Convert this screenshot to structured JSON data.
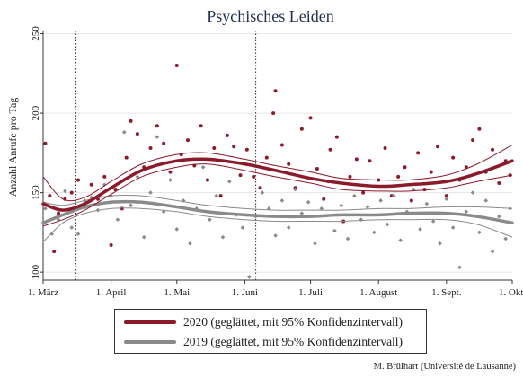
{
  "chart_data": {
    "type": "scatter",
    "title": "Psychisches Leiden",
    "ylabel": "Anzahl Anrufe pro Tag",
    "xlabel": "",
    "ylim": [
      95,
      252
    ],
    "xlim": [
      "2020-03-01",
      "2020-10-01"
    ],
    "yticks": [
      100,
      150,
      200,
      250
    ],
    "xticks": [
      {
        "date": "2020-03-01",
        "label": "1. März"
      },
      {
        "date": "2020-04-01",
        "label": "1. April"
      },
      {
        "date": "2020-05-01",
        "label": "1. Mai"
      },
      {
        "date": "2020-06-01",
        "label": "1. Juni"
      },
      {
        "date": "2020-07-01",
        "label": "1. Juli"
      },
      {
        "date": "2020-08-01",
        "label": "1. August"
      },
      {
        "date": "2020-09-01",
        "label": "1. Sept."
      },
      {
        "date": "2020-10-01",
        "label": "1. Okt."
      }
    ],
    "vlines": [
      "2020-03-16",
      "2020-06-06"
    ],
    "series": [
      {
        "name": "2020 (geglättet, mit 95% Konfidenzintervall)",
        "color": "#8b1a2b",
        "marker": "circle",
        "smooth": [
          {
            "x": "2020-03-01",
            "y": 143,
            "lo": 129,
            "hi": 160
          },
          {
            "x": "2020-03-10",
            "y": 139,
            "lo": 133,
            "hi": 146
          },
          {
            "x": "2020-03-20",
            "y": 143,
            "lo": 139,
            "hi": 147
          },
          {
            "x": "2020-04-01",
            "y": 153,
            "lo": 149,
            "hi": 157
          },
          {
            "x": "2020-04-15",
            "y": 164,
            "lo": 160,
            "hi": 168
          },
          {
            "x": "2020-05-01",
            "y": 170,
            "lo": 166,
            "hi": 174
          },
          {
            "x": "2020-05-15",
            "y": 171,
            "lo": 168,
            "hi": 175
          },
          {
            "x": "2020-06-01",
            "y": 168,
            "lo": 164,
            "hi": 171
          },
          {
            "x": "2020-06-15",
            "y": 164,
            "lo": 160,
            "hi": 167
          },
          {
            "x": "2020-07-01",
            "y": 159,
            "lo": 156,
            "hi": 163
          },
          {
            "x": "2020-07-15",
            "y": 156,
            "lo": 152,
            "hi": 159
          },
          {
            "x": "2020-08-01",
            "y": 154,
            "lo": 151,
            "hi": 158
          },
          {
            "x": "2020-08-15",
            "y": 155,
            "lo": 151,
            "hi": 158
          },
          {
            "x": "2020-09-01",
            "y": 157,
            "lo": 153,
            "hi": 161
          },
          {
            "x": "2020-09-15",
            "y": 162,
            "lo": 157,
            "hi": 168
          },
          {
            "x": "2020-10-01",
            "y": 170,
            "lo": 161,
            "hi": 180
          }
        ],
        "points": [
          {
            "x": "2020-03-02",
            "y": 181
          },
          {
            "x": "2020-03-04",
            "y": 148
          },
          {
            "x": "2020-03-06",
            "y": 113
          },
          {
            "x": "2020-03-08",
            "y": 137
          },
          {
            "x": "2020-03-11",
            "y": 146
          },
          {
            "x": "2020-03-14",
            "y": 150
          },
          {
            "x": "2020-03-17",
            "y": 158
          },
          {
            "x": "2020-03-20",
            "y": 141
          },
          {
            "x": "2020-03-23",
            "y": 155
          },
          {
            "x": "2020-03-26",
            "y": 146
          },
          {
            "x": "2020-03-29",
            "y": 160
          },
          {
            "x": "2020-04-01",
            "y": 117
          },
          {
            "x": "2020-04-03",
            "y": 152
          },
          {
            "x": "2020-04-06",
            "y": 140
          },
          {
            "x": "2020-04-08",
            "y": 172
          },
          {
            "x": "2020-04-10",
            "y": 195
          },
          {
            "x": "2020-04-13",
            "y": 187
          },
          {
            "x": "2020-04-16",
            "y": 166
          },
          {
            "x": "2020-04-19",
            "y": 178
          },
          {
            "x": "2020-04-22",
            "y": 192
          },
          {
            "x": "2020-04-25",
            "y": 181
          },
          {
            "x": "2020-04-28",
            "y": 163
          },
          {
            "x": "2020-05-01",
            "y": 230
          },
          {
            "x": "2020-05-03",
            "y": 174
          },
          {
            "x": "2020-05-06",
            "y": 183
          },
          {
            "x": "2020-05-09",
            "y": 167
          },
          {
            "x": "2020-05-12",
            "y": 192
          },
          {
            "x": "2020-05-15",
            "y": 158
          },
          {
            "x": "2020-05-18",
            "y": 178
          },
          {
            "x": "2020-05-21",
            "y": 148
          },
          {
            "x": "2020-05-24",
            "y": 186
          },
          {
            "x": "2020-05-27",
            "y": 179
          },
          {
            "x": "2020-05-30",
            "y": 161
          },
          {
            "x": "2020-06-02",
            "y": 177
          },
          {
            "x": "2020-06-05",
            "y": 160
          },
          {
            "x": "2020-06-08",
            "y": 153
          },
          {
            "x": "2020-06-11",
            "y": 172
          },
          {
            "x": "2020-06-14",
            "y": 200
          },
          {
            "x": "2020-06-15",
            "y": 214
          },
          {
            "x": "2020-06-18",
            "y": 180
          },
          {
            "x": "2020-06-21",
            "y": 168
          },
          {
            "x": "2020-06-24",
            "y": 153
          },
          {
            "x": "2020-06-27",
            "y": 190
          },
          {
            "x": "2020-07-01",
            "y": 197
          },
          {
            "x": "2020-07-04",
            "y": 165
          },
          {
            "x": "2020-07-07",
            "y": 146
          },
          {
            "x": "2020-07-10",
            "y": 177
          },
          {
            "x": "2020-07-13",
            "y": 185
          },
          {
            "x": "2020-07-16",
            "y": 132
          },
          {
            "x": "2020-07-19",
            "y": 160
          },
          {
            "x": "2020-07-22",
            "y": 171
          },
          {
            "x": "2020-07-25",
            "y": 150
          },
          {
            "x": "2020-07-28",
            "y": 170
          },
          {
            "x": "2020-08-01",
            "y": 158
          },
          {
            "x": "2020-08-04",
            "y": 178
          },
          {
            "x": "2020-08-07",
            "y": 148
          },
          {
            "x": "2020-08-10",
            "y": 160
          },
          {
            "x": "2020-08-13",
            "y": 166
          },
          {
            "x": "2020-08-16",
            "y": 145
          },
          {
            "x": "2020-08-19",
            "y": 175
          },
          {
            "x": "2020-08-22",
            "y": 152
          },
          {
            "x": "2020-08-25",
            "y": 163
          },
          {
            "x": "2020-08-28",
            "y": 179
          },
          {
            "x": "2020-09-01",
            "y": 148
          },
          {
            "x": "2020-09-04",
            "y": 172
          },
          {
            "x": "2020-09-07",
            "y": 158
          },
          {
            "x": "2020-09-10",
            "y": 166
          },
          {
            "x": "2020-09-13",
            "y": 183
          },
          {
            "x": "2020-09-16",
            "y": 190
          },
          {
            "x": "2020-09-19",
            "y": 163
          },
          {
            "x": "2020-09-22",
            "y": 177
          },
          {
            "x": "2020-09-25",
            "y": 156
          },
          {
            "x": "2020-09-28",
            "y": 170
          },
          {
            "x": "2020-09-30",
            "y": 161
          }
        ]
      },
      {
        "name": "2019 (geglättet, mit 95% Konfidenzintervall)",
        "color": "#8a8a8a",
        "marker": "diamond",
        "smooth": [
          {
            "x": "2020-03-01",
            "y": 131,
            "lo": 119,
            "hi": 144
          },
          {
            "x": "2020-03-10",
            "y": 136,
            "lo": 131,
            "hi": 142
          },
          {
            "x": "2020-03-20",
            "y": 141,
            "lo": 137,
            "hi": 145
          },
          {
            "x": "2020-04-01",
            "y": 144,
            "lo": 140,
            "hi": 148
          },
          {
            "x": "2020-04-15",
            "y": 144,
            "lo": 140,
            "hi": 148
          },
          {
            "x": "2020-05-01",
            "y": 141,
            "lo": 138,
            "hi": 145
          },
          {
            "x": "2020-05-15",
            "y": 138,
            "lo": 135,
            "hi": 142
          },
          {
            "x": "2020-06-01",
            "y": 136,
            "lo": 133,
            "hi": 140
          },
          {
            "x": "2020-06-15",
            "y": 135,
            "lo": 132,
            "hi": 139
          },
          {
            "x": "2020-07-01",
            "y": 135,
            "lo": 132,
            "hi": 139
          },
          {
            "x": "2020-07-15",
            "y": 136,
            "lo": 132,
            "hi": 139
          },
          {
            "x": "2020-08-01",
            "y": 136,
            "lo": 133,
            "hi": 140
          },
          {
            "x": "2020-08-15",
            "y": 137,
            "lo": 133,
            "hi": 140
          },
          {
            "x": "2020-09-01",
            "y": 137,
            "lo": 133,
            "hi": 141
          },
          {
            "x": "2020-09-15",
            "y": 135,
            "lo": 130,
            "hi": 141
          },
          {
            "x": "2020-10-01",
            "y": 131,
            "lo": 122,
            "hi": 140
          }
        ],
        "points": [
          {
            "x": "2020-03-02",
            "y": 140
          },
          {
            "x": "2020-03-05",
            "y": 124
          },
          {
            "x": "2020-03-08",
            "y": 133
          },
          {
            "x": "2020-03-11",
            "y": 151
          },
          {
            "x": "2020-03-14",
            "y": 128
          },
          {
            "x": "2020-03-17",
            "y": 124
          },
          {
            "x": "2020-03-20",
            "y": 145
          },
          {
            "x": "2020-03-23",
            "y": 147
          },
          {
            "x": "2020-03-26",
            "y": 139
          },
          {
            "x": "2020-03-29",
            "y": 155
          },
          {
            "x": "2020-04-01",
            "y": 148
          },
          {
            "x": "2020-04-04",
            "y": 133
          },
          {
            "x": "2020-04-07",
            "y": 188
          },
          {
            "x": "2020-04-10",
            "y": 142
          },
          {
            "x": "2020-04-13",
            "y": 160
          },
          {
            "x": "2020-04-16",
            "y": 122
          },
          {
            "x": "2020-04-19",
            "y": 150
          },
          {
            "x": "2020-04-22",
            "y": 185
          },
          {
            "x": "2020-04-25",
            "y": 138
          },
          {
            "x": "2020-04-28",
            "y": 158
          },
          {
            "x": "2020-05-01",
            "y": 127
          },
          {
            "x": "2020-05-04",
            "y": 145
          },
          {
            "x": "2020-05-07",
            "y": 118
          },
          {
            "x": "2020-05-10",
            "y": 140
          },
          {
            "x": "2020-05-13",
            "y": 166
          },
          {
            "x": "2020-05-16",
            "y": 133
          },
          {
            "x": "2020-05-19",
            "y": 148
          },
          {
            "x": "2020-05-22",
            "y": 122
          },
          {
            "x": "2020-05-25",
            "y": 157
          },
          {
            "x": "2020-05-28",
            "y": 136
          },
          {
            "x": "2020-05-31",
            "y": 128
          },
          {
            "x": "2020-06-03",
            "y": 97
          },
          {
            "x": "2020-06-06",
            "y": 135
          },
          {
            "x": "2020-06-09",
            "y": 150
          },
          {
            "x": "2020-06-12",
            "y": 140
          },
          {
            "x": "2020-06-15",
            "y": 123
          },
          {
            "x": "2020-06-18",
            "y": 145
          },
          {
            "x": "2020-06-21",
            "y": 128
          },
          {
            "x": "2020-06-24",
            "y": 152
          },
          {
            "x": "2020-06-27",
            "y": 137
          },
          {
            "x": "2020-06-30",
            "y": 144
          },
          {
            "x": "2020-07-03",
            "y": 118
          },
          {
            "x": "2020-07-06",
            "y": 140
          },
          {
            "x": "2020-07-09",
            "y": 157
          },
          {
            "x": "2020-07-12",
            "y": 126
          },
          {
            "x": "2020-07-15",
            "y": 142
          },
          {
            "x": "2020-07-18",
            "y": 121
          },
          {
            "x": "2020-07-21",
            "y": 148
          },
          {
            "x": "2020-07-24",
            "y": 133
          },
          {
            "x": "2020-07-27",
            "y": 141
          },
          {
            "x": "2020-07-30",
            "y": 125
          },
          {
            "x": "2020-08-02",
            "y": 145
          },
          {
            "x": "2020-08-05",
            "y": 130
          },
          {
            "x": "2020-08-08",
            "y": 148
          },
          {
            "x": "2020-08-11",
            "y": 120
          },
          {
            "x": "2020-08-14",
            "y": 138
          },
          {
            "x": "2020-08-17",
            "y": 152
          },
          {
            "x": "2020-08-20",
            "y": 127
          },
          {
            "x": "2020-08-23",
            "y": 143
          },
          {
            "x": "2020-08-26",
            "y": 132
          },
          {
            "x": "2020-08-29",
            "y": 118
          },
          {
            "x": "2020-09-01",
            "y": 146
          },
          {
            "x": "2020-09-04",
            "y": 128
          },
          {
            "x": "2020-09-07",
            "y": 103
          },
          {
            "x": "2020-09-10",
            "y": 138
          },
          {
            "x": "2020-09-13",
            "y": 150
          },
          {
            "x": "2020-09-16",
            "y": 125
          },
          {
            "x": "2020-09-19",
            "y": 145
          },
          {
            "x": "2020-09-22",
            "y": 113
          },
          {
            "x": "2020-09-25",
            "y": 135
          },
          {
            "x": "2020-09-28",
            "y": 121
          },
          {
            "x": "2020-09-30",
            "y": 140
          }
        ]
      }
    ]
  },
  "credit": "M. Brülhart (Université de Lausanne)"
}
